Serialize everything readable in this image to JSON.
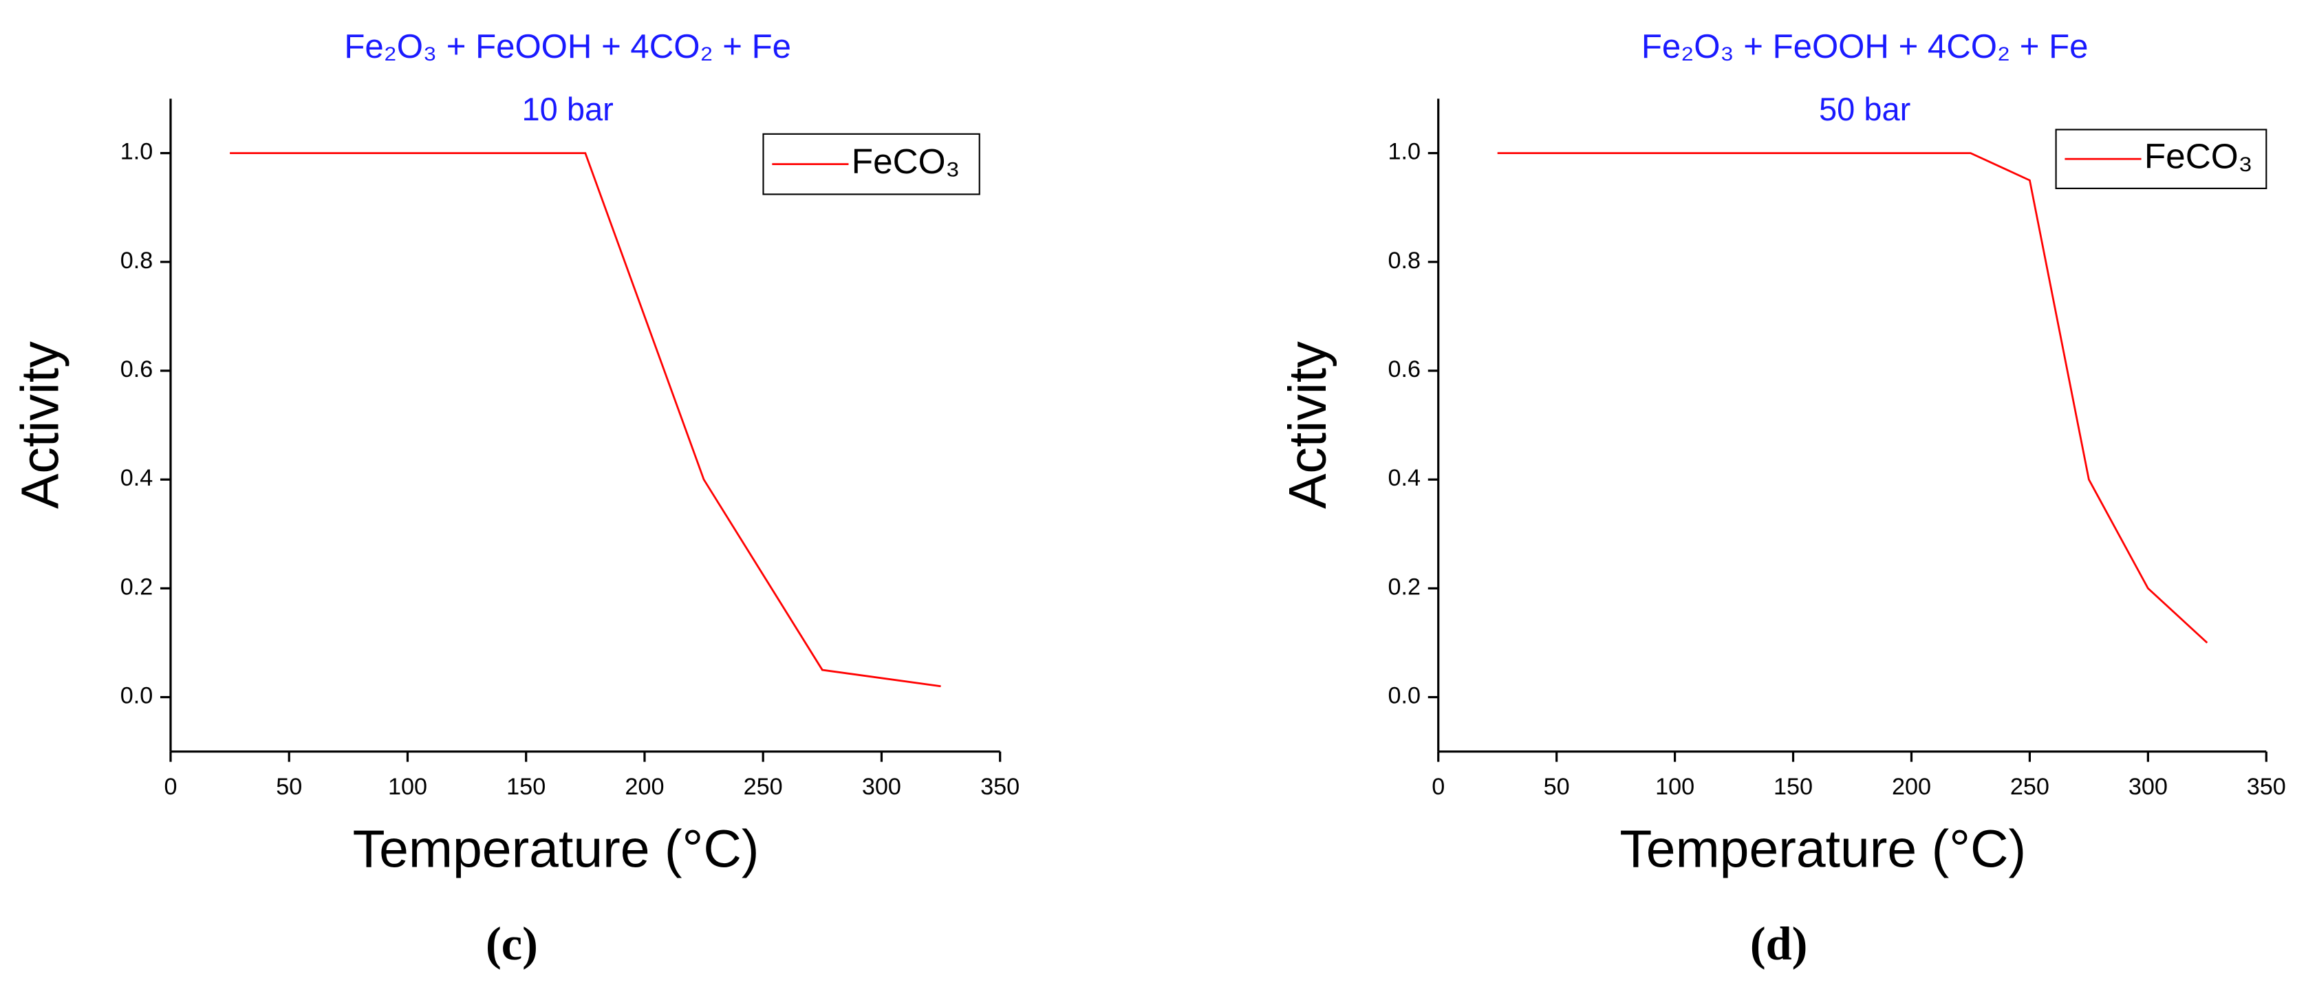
{
  "chart_data": [
    {
      "type": "line",
      "title": "Fe₂O₃ + FeOOH + 4CO₂ + Fe",
      "subtitle": "10 bar",
      "label": "(c)",
      "x_label": "Temperature (°C)",
      "y_label": "Activity",
      "x": [
        25,
        175,
        225,
        275,
        325
      ],
      "series": [
        {
          "name": "FeCO₃",
          "color": "#ff0000",
          "values": [
            1.0,
            1.0,
            0.4,
            0.05,
            0.02
          ]
        }
      ],
      "xlim": [
        0,
        350
      ],
      "ylim": [
        -0.1,
        1.1
      ],
      "xticks": [
        0,
        50,
        100,
        150,
        200,
        250,
        300,
        350
      ],
      "yticks": [
        {
          "value": 0,
          "label": "0.0"
        },
        0.2,
        0.4,
        0.6,
        0.8,
        {
          "value": 1,
          "label": "1.0"
        }
      ],
      "legend": "upper right",
      "grid": false
    },
    {
      "type": "line",
      "title": "Fe₂O₃ + FeOOH + 4CO₂ + Fe",
      "subtitle": "50 bar",
      "label": "(d)",
      "x_label": "Temperature (°C)",
      "y_label": "Activity",
      "x": [
        25,
        225,
        250,
        275,
        300,
        325
      ],
      "series": [
        {
          "name": "FeCO₃",
          "color": "#ff0000",
          "values": [
            1.0,
            1.0,
            0.95,
            0.4,
            0.2,
            0.1
          ]
        }
      ],
      "xlim": [
        0,
        350
      ],
      "ylim": [
        -0.1,
        1.1
      ],
      "xticks": [
        0,
        50,
        100,
        150,
        200,
        250,
        300,
        350
      ],
      "yticks": [
        {
          "value": 0,
          "label": "0.0"
        },
        0.2,
        0.4,
        0.6,
        0.8,
        {
          "value": 1,
          "label": "1.0"
        }
      ],
      "legend": "upper right",
      "grid": false
    }
  ]
}
